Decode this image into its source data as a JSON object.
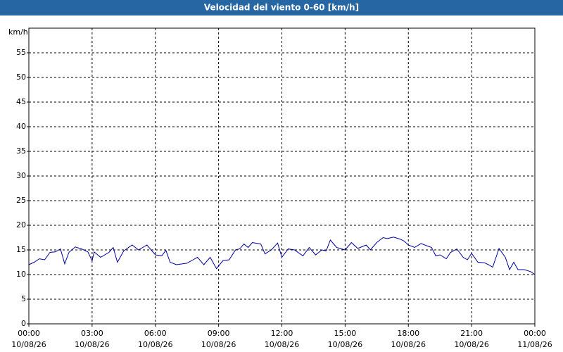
{
  "chart_data": {
    "type": "line",
    "title": "Velocidad del viento 0-60 [km/h]",
    "y_label": "km/h",
    "x": [
      0,
      0.25,
      0.5,
      0.75,
      1.0,
      1.25,
      1.5,
      1.7,
      1.9,
      2.2,
      2.5,
      2.8,
      3.0,
      3.1,
      3.4,
      3.8,
      4.0,
      4.2,
      4.5,
      4.9,
      5.2,
      5.6,
      6.0,
      6.3,
      6.5,
      6.7,
      7.0,
      7.5,
      8.0,
      8.3,
      8.6,
      8.9,
      9.2,
      9.5,
      9.8,
      10.0,
      10.2,
      10.4,
      10.6,
      11.0,
      11.2,
      11.5,
      11.8,
      12.0,
      12.3,
      12.6,
      13.0,
      13.3,
      13.6,
      13.9,
      14.1,
      14.3,
      14.6,
      15.0,
      15.3,
      15.6,
      16.0,
      16.2,
      16.5,
      16.8,
      17.0,
      17.3,
      17.6,
      17.8,
      18.0,
      18.3,
      18.6,
      18.9,
      19.1,
      19.3,
      19.5,
      19.8,
      20.0,
      20.3,
      20.6,
      20.8,
      21.0,
      21.3,
      21.6,
      21.8,
      22.0,
      22.3,
      22.6,
      22.8,
      23.0,
      23.2,
      23.5,
      23.8,
      24.0
    ],
    "series": [
      {
        "name": "Velocidad del viento",
        "color": "#0000a0",
        "values": [
          12,
          12.5,
          13.2,
          13,
          14.5,
          14.6,
          15.2,
          12.2,
          14.5,
          15.6,
          15.2,
          14.6,
          12.8,
          14.6,
          13.5,
          14.5,
          15.5,
          12.5,
          14.8,
          16.0,
          15.0,
          16.0,
          14.0,
          13.8,
          14.9,
          12.5,
          12.0,
          12.3,
          13.5,
          12.0,
          13.5,
          11.2,
          12.8,
          13.0,
          15.0,
          15.2,
          16.2,
          15.5,
          16.5,
          16.2,
          14.2,
          15.0,
          16.4,
          13.5,
          15.2,
          15.0,
          13.8,
          15.5,
          14.0,
          15.0,
          14.8,
          17.0,
          15.5,
          15.0,
          16.5,
          15.3,
          16.0,
          15.0,
          16.5,
          17.5,
          17.3,
          17.6,
          17.2,
          16.8,
          16.0,
          15.5,
          16.3,
          15.8,
          15.5,
          13.8,
          14.0,
          13.2,
          14.5,
          15.2,
          13.5,
          13.0,
          14.3,
          12.5,
          12.4,
          12.0,
          11.5,
          15.3,
          13.5,
          11.0,
          12.5,
          11.0,
          11.0,
          10.6,
          10.0
        ]
      }
    ],
    "xlim": [
      0,
      24
    ],
    "xticks": [
      {
        "value": 0,
        "label": "00:00"
      },
      {
        "value": 3,
        "label": "03:00"
      },
      {
        "value": 6,
        "label": "06:00"
      },
      {
        "value": 9,
        "label": "09:00"
      },
      {
        "value": 12,
        "label": "12:00"
      },
      {
        "value": 15,
        "label": "15:00"
      },
      {
        "value": 18,
        "label": "18:00"
      },
      {
        "value": 21,
        "label": "21:00"
      },
      {
        "value": 24,
        "label": "00:00"
      }
    ],
    "xtick_dates": [
      "10/08/26",
      "10/08/26",
      "10/08/26",
      "10/08/26",
      "10/08/26",
      "10/08/26",
      "10/08/26",
      "10/08/26",
      "11/08/26"
    ],
    "ylim": [
      0,
      60
    ],
    "yticks": [
      0,
      5,
      10,
      15,
      20,
      25,
      30,
      35,
      40,
      45,
      50,
      55
    ],
    "grid": true
  }
}
